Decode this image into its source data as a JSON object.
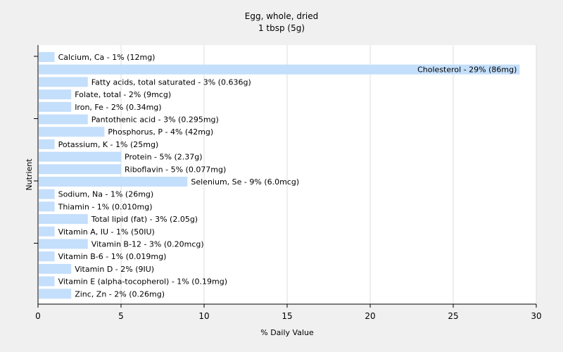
{
  "chart_data": {
    "type": "bar",
    "orientation": "horizontal",
    "title": "Egg, whole, dried",
    "subtitle": "1 tbsp (5g)",
    "xlabel": "% Daily Value",
    "ylabel": "Nutrient",
    "xlim": [
      0,
      30
    ],
    "xticks": [
      "0",
      "5",
      "10",
      "15",
      "20",
      "25",
      "30"
    ],
    "grid": "vertical",
    "bar_color": "#c4dffb",
    "categories": [
      "Calcium, Ca",
      "Cholesterol",
      "Fatty acids, total saturated",
      "Folate, total",
      "Iron, Fe",
      "Pantothenic acid",
      "Phosphorus, P",
      "Potassium, K",
      "Protein",
      "Riboflavin",
      "Selenium, Se",
      "Sodium, Na",
      "Thiamin",
      "Total lipid (fat)",
      "Vitamin A, IU",
      "Vitamin B-12",
      "Vitamin B-6",
      "Vitamin D",
      "Vitamin E (alpha-tocopherol)",
      "Zinc, Zn"
    ],
    "values": [
      1,
      29,
      3,
      2,
      2,
      3,
      4,
      1,
      5,
      5,
      9,
      1,
      1,
      3,
      1,
      3,
      1,
      2,
      1,
      2
    ],
    "labels": [
      "Calcium, Ca - 1% (12mg)",
      "Cholesterol - 29% (86mg)",
      "Fatty acids, total saturated - 3% (0.636g)",
      "Folate, total - 2% (9mcg)",
      "Iron, Fe - 2% (0.34mg)",
      "Pantothenic acid - 3% (0.295mg)",
      "Phosphorus, P - 4% (42mg)",
      "Potassium, K - 1% (25mg)",
      "Protein - 5% (2.37g)",
      "Riboflavin - 5% (0.077mg)",
      "Selenium, Se - 9% (6.0mcg)",
      "Sodium, Na - 1% (26mg)",
      "Thiamin - 1% (0.010mg)",
      "Total lipid (fat) - 3% (2.05g)",
      "Vitamin A, IU - 1% (50IU)",
      "Vitamin B-12 - 3% (0.20mcg)",
      "Vitamin B-6 - 1% (0.019mg)",
      "Vitamin D - 2% (9IU)",
      "Vitamin E (alpha-tocopherol) - 1% (0.19mg)",
      "Zinc, Zn - 2% (0.26mg)"
    ]
  }
}
